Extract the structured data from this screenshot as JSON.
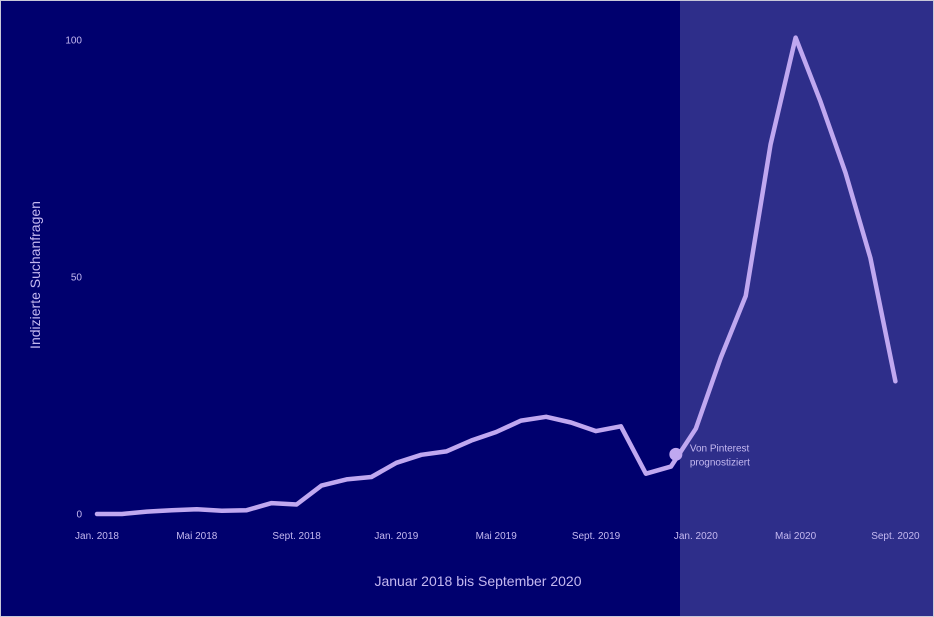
{
  "colors": {
    "background": "#00006e",
    "forecast_background": "#2e2e8a",
    "line": "#c0a8f0",
    "text": "#c4b8f0",
    "border": "#c8c8d8"
  },
  "chart_data": {
    "type": "line",
    "title": "",
    "xlabel": "Januar 2018 bis September 2020",
    "ylabel": "Indizierte Suchanfragen",
    "ylim": [
      0,
      100
    ],
    "yticks": [
      0,
      50,
      100
    ],
    "xlim": [
      "2018-01",
      "2020-09"
    ],
    "xticks": [
      {
        "x": "2018-01",
        "label": "Jan. 2018"
      },
      {
        "x": "2018-05",
        "label": "Mai 2018"
      },
      {
        "x": "2018-09",
        "label": "Sept. 2018"
      },
      {
        "x": "2019-01",
        "label": "Jan. 2019"
      },
      {
        "x": "2019-05",
        "label": "Mai 2019"
      },
      {
        "x": "2019-09",
        "label": "Sept. 2019"
      },
      {
        "x": "2020-01",
        "label": "Jan. 2020"
      },
      {
        "x": "2020-05",
        "label": "Mai 2020"
      },
      {
        "x": "2020-09",
        "label": "Sept. 2020"
      }
    ],
    "grid": false,
    "forecast_start": "2019-12",
    "series": [
      {
        "x": [
          "2018-01",
          "2018-02",
          "2018-03",
          "2018-04",
          "2018-05",
          "2018-06",
          "2018-07",
          "2018-08",
          "2018-09",
          "2018-10",
          "2018-11",
          "2018-12",
          "2019-01",
          "2019-02",
          "2019-03",
          "2019-04",
          "2019-05",
          "2019-06",
          "2019-07",
          "2019-08",
          "2019-09",
          "2019-10",
          "2019-11",
          "2019-12",
          "2020-01",
          "2020-02",
          "2020-03",
          "2020-04",
          "2020-05",
          "2020-06",
          "2020-07",
          "2020-08",
          "2020-09"
        ],
        "values": [
          0,
          0,
          0.5,
          0.8,
          1,
          0.7,
          0.8,
          2.3,
          2,
          6,
          7.3,
          7.8,
          10.8,
          12.5,
          13.2,
          15.5,
          17.3,
          19.7,
          20.5,
          19.3,
          17.5,
          18.5,
          8.5,
          10,
          18,
          33,
          46,
          78,
          100.5,
          87,
          72,
          54,
          28
        ]
      }
    ],
    "annotations": [
      {
        "x": "2019-12",
        "y": 12.8,
        "text": [
          "Von Pinterest",
          "prognostiziert"
        ]
      }
    ]
  }
}
